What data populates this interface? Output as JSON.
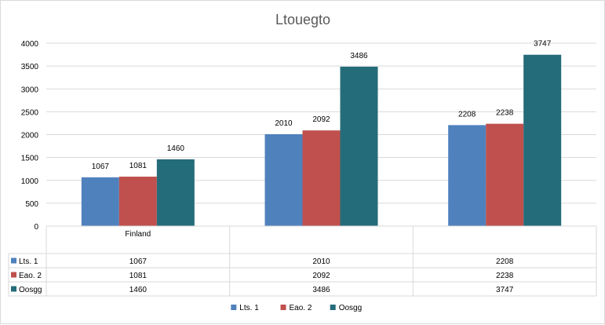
{
  "chart_data": {
    "type": "bar",
    "title": "Ltouegto",
    "categories": [
      "Finland",
      "",
      ""
    ],
    "series": [
      {
        "name": "Lts. 1",
        "values": [
          1067,
          2010,
          2208
        ],
        "color": "#4f81bd"
      },
      {
        "name": "Eao. 2",
        "values": [
          1081,
          2092,
          2238
        ],
        "color": "#c0504d"
      },
      {
        "name": "Oosgg",
        "values": [
          1460,
          3486,
          3747
        ],
        "color": "#256c7a"
      }
    ],
    "ylim": [
      0,
      4000
    ],
    "yticks": [
      0,
      500,
      1000,
      1500,
      2000,
      2500,
      3000,
      3500,
      4000
    ],
    "grid": true,
    "data_table": true,
    "legend": "bottom"
  }
}
